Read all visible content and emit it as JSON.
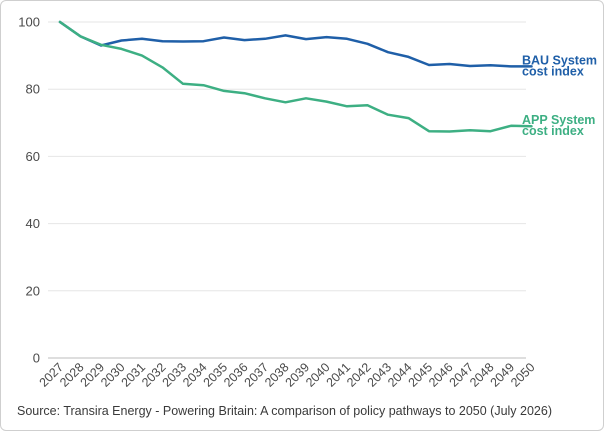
{
  "chart_data": {
    "type": "line",
    "title": "",
    "xlabel": "",
    "ylabel": "",
    "ylim": [
      0,
      100
    ],
    "yticks": [
      0,
      20,
      40,
      60,
      80,
      100
    ],
    "grid": "horizontal",
    "categories": [
      "2027",
      "2028",
      "2029",
      "2030",
      "2031",
      "2032",
      "2033",
      "2034",
      "2035",
      "2036",
      "2037",
      "2038",
      "2039",
      "2040",
      "2041",
      "2042",
      "2043",
      "2044",
      "2045",
      "2046",
      "2047",
      "2048",
      "2049",
      "2050"
    ],
    "series": [
      {
        "name": "BAU System cost index",
        "label_lines": [
          "BAU System",
          "cost index"
        ],
        "color": "#1f5fa8",
        "values": [
          100,
          95.7,
          93.0,
          94.5,
          95.0,
          94.3,
          94.2,
          94.3,
          95.4,
          94.6,
          95.0,
          96.0,
          94.9,
          95.5,
          95.0,
          93.5,
          91.0,
          89.6,
          87.2,
          87.5,
          86.9,
          87.1,
          86.8,
          86.8
        ]
      },
      {
        "name": "APP System cost index",
        "label_lines": [
          "APP System",
          "cost index"
        ],
        "color": "#3daf83",
        "values": [
          100,
          95.7,
          93.2,
          92.0,
          90.0,
          86.5,
          81.6,
          81.2,
          79.5,
          78.8,
          77.3,
          76.1,
          77.3,
          76.3,
          74.9,
          75.2,
          72.4,
          71.4,
          67.5,
          67.4,
          67.8,
          67.5,
          69.1,
          69.0
        ]
      }
    ]
  },
  "source": "Source: Transira Energy - Powering Britain: A comparison of policy pathways to 2050 (July 2026)"
}
